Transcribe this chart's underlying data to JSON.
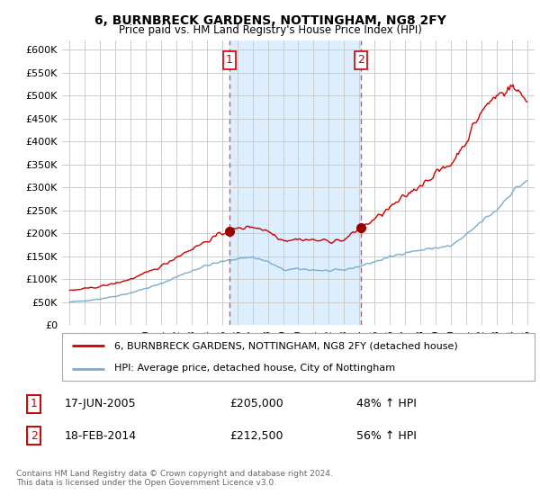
{
  "title": "6, BURNBRECK GARDENS, NOTTINGHAM, NG8 2FY",
  "subtitle": "Price paid vs. HM Land Registry's House Price Index (HPI)",
  "red_label": "6, BURNBRECK GARDENS, NOTTINGHAM, NG8 2FY (detached house)",
  "blue_label": "HPI: Average price, detached house, City of Nottingham",
  "transaction1_date": "17-JUN-2005",
  "transaction1_price": "£205,000",
  "transaction1_hpi": "48% ↑ HPI",
  "transaction1_year": 2005.46,
  "transaction2_date": "18-FEB-2014",
  "transaction2_price": "£212,500",
  "transaction2_hpi": "56% ↑ HPI",
  "transaction2_year": 2014.12,
  "footer": "Contains HM Land Registry data © Crown copyright and database right 2024.\nThis data is licensed under the Open Government Licence v3.0.",
  "red_color": "#cc0000",
  "blue_color": "#7aadcf",
  "marker_color": "#dd4444",
  "shade_color": "#ddeeff",
  "ylim_min": 0,
  "ylim_max": 620000,
  "yticks": [
    0,
    50000,
    100000,
    150000,
    200000,
    250000,
    300000,
    350000,
    400000,
    450000,
    500000,
    550000,
    600000
  ],
  "xlim_min": 1994.5,
  "xlim_max": 2025.5,
  "sale1_value": 205000,
  "sale2_value": 212500,
  "background_color": "#ffffff",
  "plot_bg_color": "#ffffff",
  "grid_color": "#cccccc"
}
